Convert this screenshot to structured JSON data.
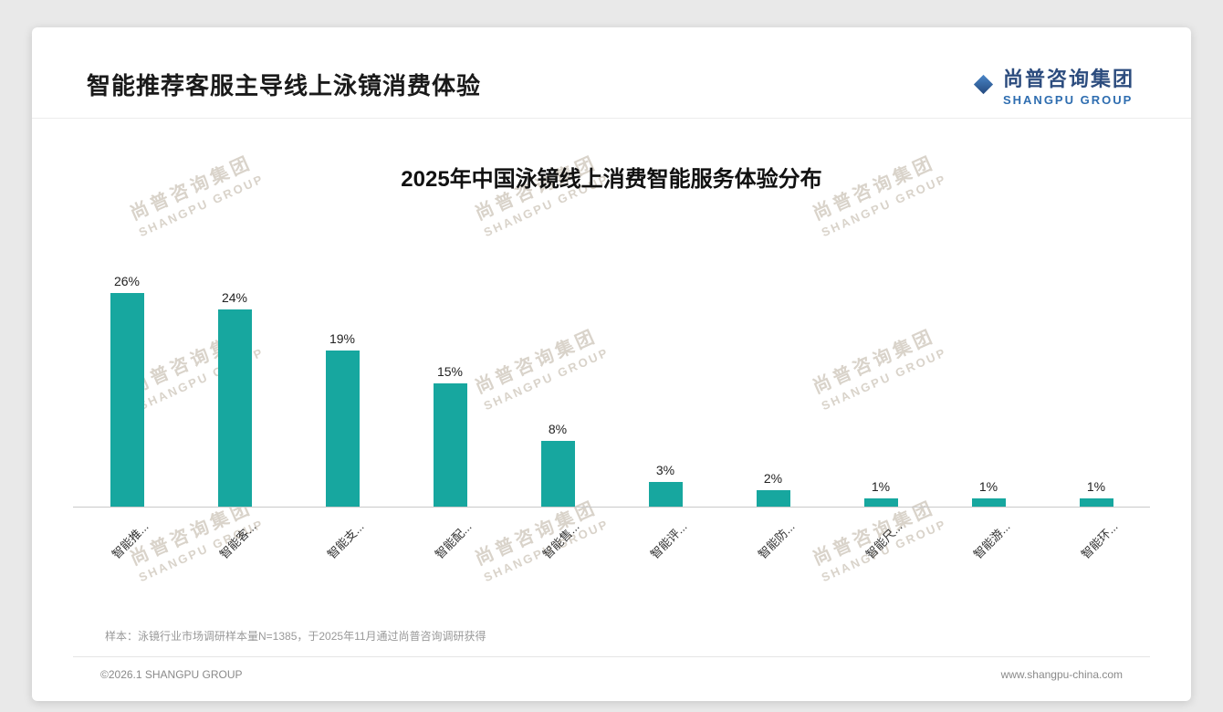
{
  "page": {
    "title": "智能推荐客服主导线上泳镜消费体验",
    "logo": {
      "cn": "尚普咨询集团",
      "en": "SHANGPU GROUP",
      "brand_navy": "#2c4c7e",
      "brand_blue": "#2e6db0"
    },
    "watermark": {
      "line1": "尚普咨询集团",
      "line2": "SHANGPU GROUP"
    },
    "footer": {
      "note": "样本：泳镜行业市场调研样本量N=1385，于2025年11月通过尚普咨询调研获得",
      "copyright": "©2026.1 SHANGPU GROUP",
      "website": "www.shangpu-china.com"
    }
  },
  "chart_data": {
    "type": "bar",
    "title": "2025年中国泳镜线上消费智能服务体验分布",
    "categories": [
      "智能推...",
      "智能客...",
      "智能支...",
      "智能配...",
      "智能售...",
      "智能评...",
      "智能防...",
      "智能尺...",
      "智能游...",
      "智能环..."
    ],
    "values": [
      26,
      24,
      19,
      15,
      8,
      3,
      2,
      1,
      1,
      1
    ],
    "value_suffix": "%",
    "bar_color": "#17A79F",
    "xlabel": "",
    "ylabel": "",
    "ylim": [
      0,
      30
    ],
    "grid": false,
    "legend": false,
    "value_labels_shown": true
  }
}
